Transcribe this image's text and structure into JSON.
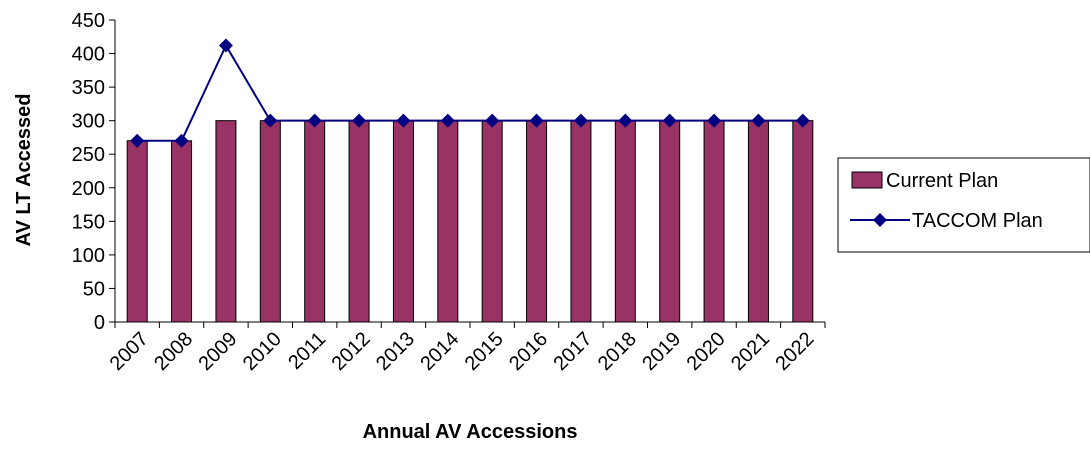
{
  "chart_data": {
    "type": "bar",
    "title": "",
    "xlabel": "Annual AV Accessions",
    "ylabel": "AV LT Accessed",
    "categories": [
      "2007",
      "2008",
      "2009",
      "2010",
      "2011",
      "2012",
      "2013",
      "2014",
      "2015",
      "2016",
      "2017",
      "2018",
      "2019",
      "2020",
      "2021",
      "2022"
    ],
    "ylim": [
      0,
      450
    ],
    "yticks": [
      0,
      50,
      100,
      150,
      200,
      250,
      300,
      350,
      400,
      450
    ],
    "grid": false,
    "legend_position": "right",
    "series": [
      {
        "name": "Current Plan",
        "type": "bar",
        "color": "#993366",
        "values": [
          270,
          270,
          300,
          300,
          300,
          300,
          300,
          300,
          300,
          300,
          300,
          300,
          300,
          300,
          300,
          300
        ]
      },
      {
        "name": "TACCOM Plan",
        "type": "line",
        "marker": "diamond",
        "color": "#000080",
        "values": [
          270,
          270,
          412,
          300,
          300,
          300,
          300,
          300,
          300,
          300,
          300,
          300,
          300,
          300,
          300,
          300
        ]
      }
    ]
  }
}
